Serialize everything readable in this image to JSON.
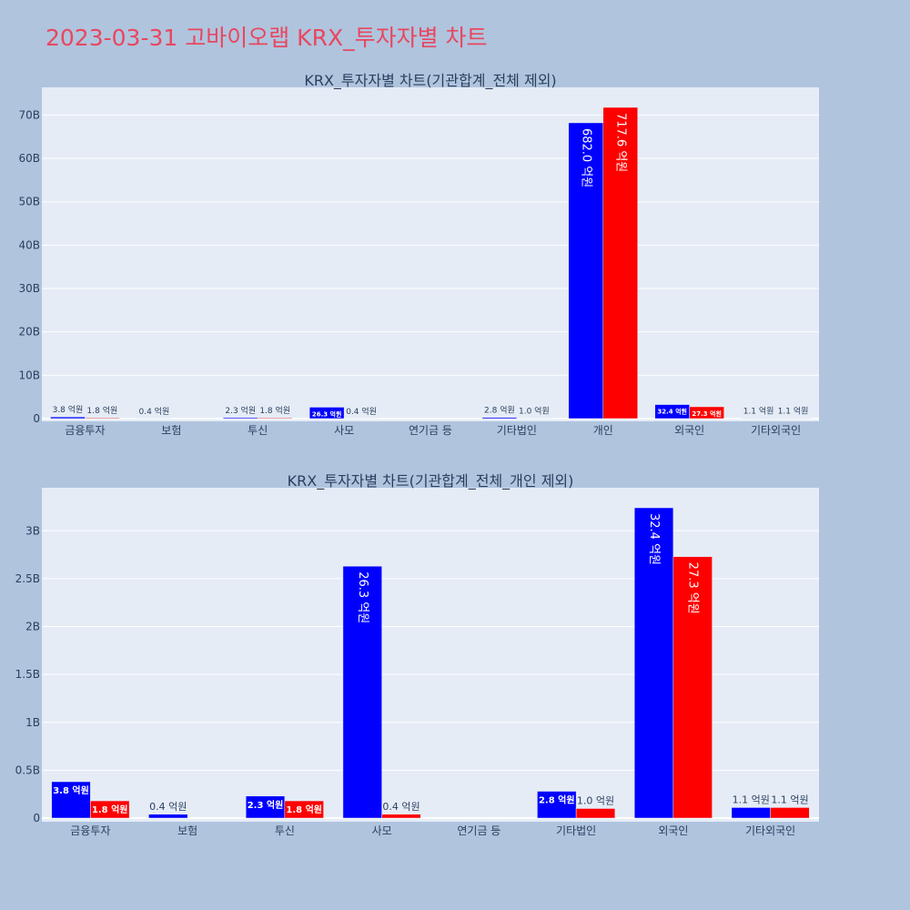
{
  "page": {
    "title": "2023-03-31 고바이오랩 KRX_투자자별 차트"
  },
  "colors": {
    "background": "#b0c4de",
    "plot_background": "#e5ecf6",
    "title": "#e8475f",
    "series_blue": "#0000ff",
    "series_red": "#ff0000",
    "axis_text": "#2a3f5f"
  },
  "chart_data": [
    {
      "type": "bar",
      "title": "KRX_투자자별 차트(기관합계_전체 제외)",
      "categories": [
        "금융투자",
        "보험",
        "투신",
        "사모",
        "연기금 등",
        "기타법인",
        "개인",
        "외국인",
        "기타외국인"
      ],
      "ylim": [
        0,
        71760000000
      ],
      "yticks": [
        0,
        10000000000,
        20000000000,
        30000000000,
        40000000000,
        50000000000,
        60000000000,
        70000000000
      ],
      "ytick_labels": [
        "0",
        "10B",
        "20B",
        "30B",
        "40B",
        "50B",
        "60B",
        "70B"
      ],
      "grid": true,
      "series": [
        {
          "color": "#0000ff",
          "values": [
            380000000,
            40000000,
            230000000,
            2630000000,
            0,
            280000000,
            68200000000,
            3240000000,
            110000000
          ],
          "labels": [
            "3.8 억원",
            "0.4 억원",
            "2.3 억원",
            "26.3 억원",
            "",
            "2.8 억원",
            "682.0 억원",
            "32.4 억원",
            "1.1 억원"
          ]
        },
        {
          "color": "#ff0000",
          "values": [
            180000000,
            0,
            180000000,
            40000000,
            0,
            100000000,
            71760000000,
            2730000000,
            110000000
          ],
          "labels": [
            "1.8 억원",
            "",
            "1.8 억원",
            "0.4 억원",
            "",
            "1.0 억원",
            "717.6 억원",
            "27.3 억원",
            "1.1 억원"
          ]
        }
      ]
    },
    {
      "type": "bar",
      "title": "KRX_투자자별 차트(기관합계_전체_개인 제외)",
      "categories": [
        "금융투자",
        "보험",
        "투신",
        "사모",
        "연기금 등",
        "기타법인",
        "외국인",
        "기타외국인"
      ],
      "ylim": [
        0,
        3240000000
      ],
      "yticks": [
        0,
        500000000,
        1000000000,
        1500000000,
        2000000000,
        2500000000,
        3000000000
      ],
      "ytick_labels": [
        "0",
        "0.5B",
        "1B",
        "1.5B",
        "2B",
        "2.5B",
        "3B"
      ],
      "grid": true,
      "series": [
        {
          "color": "#0000ff",
          "values": [
            380000000,
            40000000,
            230000000,
            2630000000,
            0,
            280000000,
            3240000000,
            110000000
          ],
          "labels": [
            "3.8 억원",
            "0.4 억원",
            "2.3 억원",
            "26.3 억원",
            "",
            "2.8 억원",
            "32.4 억원",
            "1.1 억원"
          ]
        },
        {
          "color": "#ff0000",
          "values": [
            180000000,
            0,
            180000000,
            40000000,
            0,
            100000000,
            2730000000,
            110000000
          ],
          "labels": [
            "1.8 억원",
            "",
            "1.8 억원",
            "0.4 억원",
            "",
            "1.0 억원",
            "27.3 억원",
            "1.1 억원"
          ]
        }
      ]
    }
  ]
}
